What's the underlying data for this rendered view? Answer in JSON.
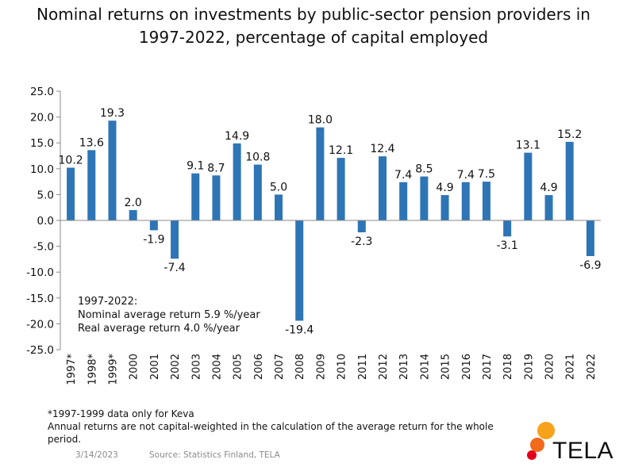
{
  "title_line1": "Nominal returns on investments by public-sector pension providers in",
  "title_line2": "1997-2022, percentage of capital employed",
  "chart_data": {
    "type": "bar",
    "categories": [
      "1997*",
      "1998*",
      "1999*",
      "2000",
      "2001",
      "2002",
      "2003",
      "2004",
      "2005",
      "2006",
      "2007",
      "2008",
      "2009",
      "2010",
      "2011",
      "2012",
      "2013",
      "2014",
      "2015",
      "2016",
      "2017",
      "2018",
      "2019",
      "2020",
      "2021",
      "2022"
    ],
    "values": [
      10.2,
      13.6,
      19.3,
      2.0,
      -1.9,
      -7.4,
      9.1,
      8.7,
      14.9,
      10.8,
      5.0,
      -19.4,
      18.0,
      12.1,
      -2.3,
      12.4,
      7.4,
      8.5,
      4.9,
      7.4,
      7.5,
      -3.1,
      13.1,
      4.9,
      15.2,
      -6.9
    ],
    "ylim": [
      -25,
      25
    ],
    "yticks": [
      25,
      20,
      15,
      10,
      5,
      0,
      -5,
      -10,
      -15,
      -20,
      -25
    ],
    "bar_color": "#2e75b6",
    "grid": false,
    "annotation": [
      "1997-2022:",
      "Nominal average return 5.9 %/year",
      "Real average return 4.0 %/year"
    ]
  },
  "footnotes": {
    "line1": "*1997-1999  data only for Keva",
    "line2": "Annual returns are not capital-weighted in the calculation of the average return for the whole",
    "line3": "period."
  },
  "date": "3/14/2023",
  "source": "Source: Statistics Finland, TELA",
  "logo": {
    "text": "TELA",
    "colors": [
      "#f7a21b",
      "#f26a1b",
      "#e3001b"
    ]
  }
}
